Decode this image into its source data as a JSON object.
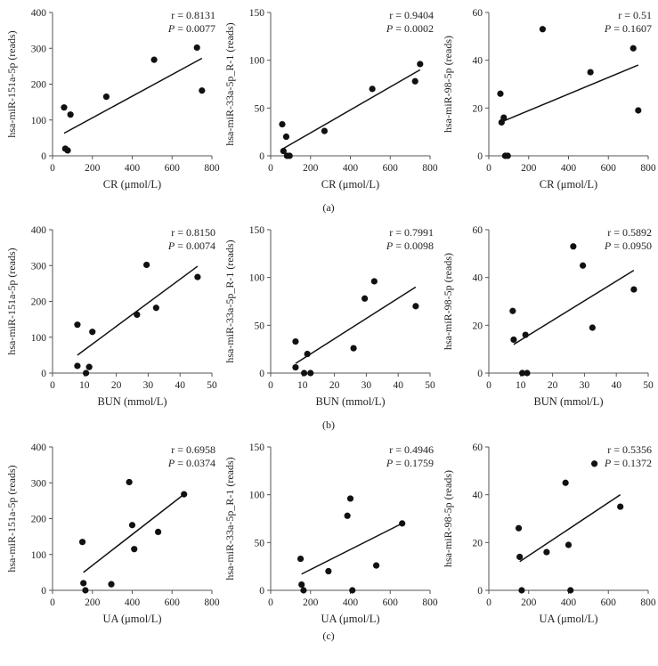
{
  "figure": {
    "captions": [
      "(a)",
      "(b)",
      "(c)"
    ]
  },
  "colors": {
    "marker": "#111111",
    "line": "#111111",
    "axis": "#555555",
    "text": "#222222"
  },
  "chart_data": [
    {
      "type": "scatter",
      "xlabel": "CR (μmol/L)",
      "ylabel": "hsa-miR-151a-5p (reads)",
      "xlim": [
        0,
        800
      ],
      "ylim": [
        0,
        400
      ],
      "xticks": [
        0,
        200,
        400,
        600,
        800
      ],
      "yticks": [
        0,
        100,
        200,
        300,
        400
      ],
      "r": "r = 0.8131",
      "p_prefix": "P",
      "p_value": "= 0.0077",
      "x": [
        58,
        64,
        76,
        90,
        270,
        510,
        725,
        750
      ],
      "y": [
        135,
        20,
        15,
        115,
        165,
        268,
        302,
        182
      ],
      "fit": [
        [
          58,
          63
        ],
        [
          750,
          272
        ]
      ]
    },
    {
      "type": "scatter",
      "xlabel": "CR (μmol/L)",
      "ylabel": "hsa-miR-33a-5p_R-1 (reads)",
      "xlim": [
        0,
        800
      ],
      "ylim": [
        0,
        150
      ],
      "xticks": [
        0,
        200,
        400,
        600,
        800
      ],
      "yticks": [
        0,
        50,
        100,
        150
      ],
      "r": "r = 0.9404",
      "p_prefix": "P",
      "p_value": "= 0.0002",
      "x": [
        58,
        64,
        78,
        82,
        95,
        270,
        510,
        725,
        750
      ],
      "y": [
        33,
        5,
        20,
        0,
        0,
        26,
        70,
        78,
        96
      ],
      "fit": [
        [
          58,
          7
        ],
        [
          750,
          90
        ]
      ]
    },
    {
      "type": "scatter",
      "xlabel": "CR (μmol/L)",
      "ylabel": "hsa-miR-98-5p (reads)",
      "xlim": [
        0,
        800
      ],
      "ylim": [
        0,
        60
      ],
      "xticks": [
        0,
        200,
        400,
        600,
        800
      ],
      "yticks": [
        0,
        20,
        40,
        60
      ],
      "r": "r = 0.51",
      "p_prefix": "P",
      "p_value": "= 0.1607",
      "x": [
        58,
        64,
        75,
        82,
        95,
        270,
        510,
        725,
        750
      ],
      "y": [
        26,
        14,
        16,
        0,
        0,
        53,
        35,
        45,
        19
      ],
      "fit": [
        [
          58,
          14
        ],
        [
          750,
          38
        ]
      ]
    },
    {
      "type": "scatter",
      "xlabel": "BUN (mmol/L)",
      "ylabel": "hsa-miR-151a-5p (reads)",
      "xlim": [
        0,
        50
      ],
      "ylim": [
        0,
        400
      ],
      "xticks": [
        0,
        10,
        20,
        30,
        40,
        50
      ],
      "yticks": [
        0,
        100,
        200,
        300,
        400
      ],
      "r": "r = 0.8150",
      "p_prefix": "P",
      "p_value": "= 0.0074",
      "x": [
        7.8,
        7.8,
        10.5,
        11.5,
        12.5,
        26.5,
        29.5,
        32.5,
        45.5
      ],
      "y": [
        135,
        20,
        0,
        17,
        115,
        163,
        302,
        182,
        268
      ],
      "fit": [
        [
          7.8,
          50
        ],
        [
          45.5,
          298
        ]
      ]
    },
    {
      "type": "scatter",
      "xlabel": "BUN (mmol/L)",
      "ylabel": "hsa-miR-33a-5p_R-1 (reads)",
      "xlim": [
        0,
        50
      ],
      "ylim": [
        0,
        150
      ],
      "xticks": [
        0,
        10,
        20,
        30,
        40,
        50
      ],
      "yticks": [
        0,
        50,
        100,
        150
      ],
      "r": "r = 0.7991",
      "p_prefix": "P",
      "p_value": "= 0.0098",
      "x": [
        7.8,
        7.8,
        10.5,
        11.5,
        12.5,
        26,
        29.5,
        32.5,
        45.5
      ],
      "y": [
        33,
        6,
        0,
        20,
        0,
        26,
        78,
        96,
        70
      ],
      "fit": [
        [
          7.8,
          10
        ],
        [
          45.5,
          90
        ]
      ]
    },
    {
      "type": "scatter",
      "xlabel": "BUN (mmol/L)",
      "ylabel": "hsa-miR-98-5p (reads)",
      "xlim": [
        0,
        50
      ],
      "ylim": [
        0,
        60
      ],
      "xticks": [
        0,
        10,
        20,
        30,
        40,
        50
      ],
      "yticks": [
        0,
        20,
        40,
        60
      ],
      "r": "r = 0.5892",
      "p_prefix": "P",
      "p_value": "= 0.0950",
      "x": [
        7.5,
        7.8,
        10.5,
        11.5,
        12,
        26.5,
        29.5,
        32.5,
        45.5
      ],
      "y": [
        26,
        14,
        0,
        16,
        0,
        53,
        45,
        19,
        35
      ],
      "fit": [
        [
          7.8,
          12
        ],
        [
          45.5,
          43
        ]
      ]
    },
    {
      "type": "scatter",
      "xlabel": "UA (μmol/L)",
      "ylabel": "hsa-miR-151a-5p (reads)",
      "xlim": [
        0,
        800
      ],
      "ylim": [
        0,
        400
      ],
      "xticks": [
        0,
        200,
        400,
        600,
        800
      ],
      "yticks": [
        0,
        100,
        200,
        300,
        400
      ],
      "r": "r = 0.6958",
      "p_prefix": "P",
      "p_value": "= 0.0374",
      "x": [
        150,
        155,
        165,
        295,
        385,
        400,
        410,
        530,
        660
      ],
      "y": [
        135,
        20,
        0,
        17,
        302,
        182,
        115,
        163,
        268
      ],
      "fit": [
        [
          155,
          50
        ],
        [
          660,
          268
        ]
      ]
    },
    {
      "type": "scatter",
      "xlabel": "UA (μmol/L)",
      "ylabel": "hsa-miR-33a-5p_R-1 (reads)",
      "xlim": [
        0,
        800
      ],
      "ylim": [
        0,
        150
      ],
      "xticks": [
        0,
        200,
        400,
        600,
        800
      ],
      "yticks": [
        0,
        50,
        100,
        150
      ],
      "r": "r = 0.4946",
      "p_prefix": "P",
      "p_value": "= 0.1759",
      "x": [
        150,
        155,
        165,
        290,
        385,
        400,
        410,
        530,
        660
      ],
      "y": [
        33,
        6,
        0,
        20,
        78,
        96,
        0,
        26,
        70
      ],
      "fit": [
        [
          155,
          17
        ],
        [
          660,
          70
        ]
      ]
    },
    {
      "type": "scatter",
      "xlabel": "UA (μmol/L)",
      "ylabel": "hsa-miR-98-5p (reads)",
      "xlim": [
        0,
        800
      ],
      "ylim": [
        0,
        60
      ],
      "xticks": [
        0,
        200,
        400,
        600,
        800
      ],
      "yticks": [
        0,
        20,
        40,
        60
      ],
      "r": "r = 0.5356",
      "p_prefix": "P",
      "p_value": "= 0.1372",
      "x": [
        150,
        155,
        165,
        290,
        385,
        400,
        410,
        530,
        660
      ],
      "y": [
        26,
        14,
        0,
        16,
        45,
        19,
        0,
        53,
        35
      ],
      "fit": [
        [
          155,
          12
        ],
        [
          660,
          40
        ]
      ]
    }
  ]
}
